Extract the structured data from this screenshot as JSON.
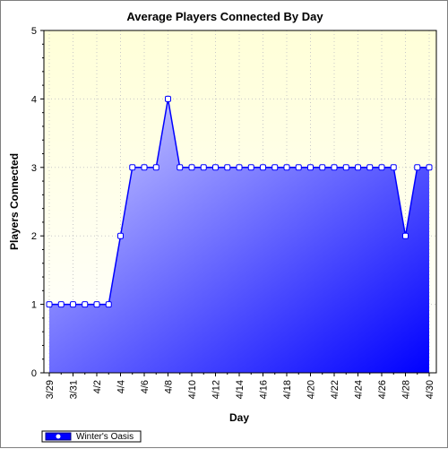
{
  "chart_data": {
    "type": "area",
    "title": "Average Players Connected By Day",
    "xlabel": "Day",
    "ylabel": "Players Connected",
    "ylim": [
      0,
      5
    ],
    "y_ticks": [
      "0",
      "1",
      "2",
      "3",
      "4",
      "5"
    ],
    "grid": true,
    "legend_position": "bottom-left",
    "x": [
      "3/29",
      "3/30",
      "3/31",
      "4/1",
      "4/2",
      "4/3",
      "4/4",
      "4/5",
      "4/6",
      "4/7",
      "4/8",
      "4/9",
      "4/10",
      "4/11",
      "4/12",
      "4/13",
      "4/14",
      "4/15",
      "4/16",
      "4/17",
      "4/18",
      "4/19",
      "4/20",
      "4/21",
      "4/22",
      "4/23",
      "4/24",
      "4/25",
      "4/26",
      "4/27",
      "4/28",
      "4/29",
      "4/30"
    ],
    "x_tick_labels": [
      "3/29",
      "3/31",
      "4/2",
      "4/4",
      "4/6",
      "4/8",
      "4/10",
      "4/12",
      "4/14",
      "4/16",
      "4/18",
      "4/20",
      "4/22",
      "4/24",
      "4/26",
      "4/28",
      "4/30"
    ],
    "series": [
      {
        "name": "Winter's Oasis",
        "values": [
          1,
          1,
          1,
          1,
          1,
          1,
          2,
          3,
          3,
          3,
          4,
          3,
          3,
          3,
          3,
          3,
          3,
          3,
          3,
          3,
          3,
          3,
          3,
          3,
          3,
          3,
          3,
          3,
          3,
          3,
          2,
          3,
          3
        ]
      }
    ],
    "colors": {
      "plot_background_top": "#ffffe0",
      "plot_background_bottom": "#ffffff",
      "area_light": "#c8c8ff",
      "area_dark": "#0000ff",
      "line": "#0000ff",
      "marker_fill": "#ffffff",
      "grid": "#c8c8c8"
    }
  }
}
